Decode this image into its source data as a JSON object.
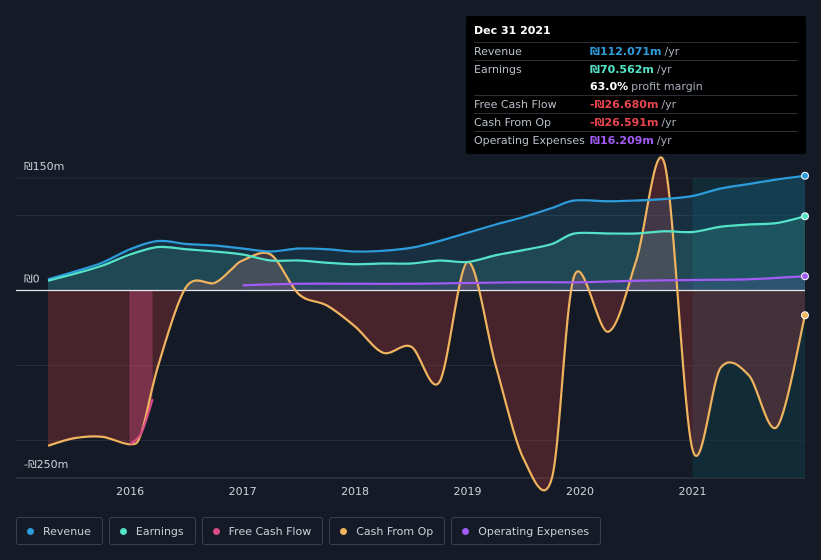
{
  "tooltip": {
    "date": "Dec 31 2021",
    "rows": [
      {
        "label": "Revenue",
        "value": "₪112.071m",
        "unit": "/yr",
        "color": "#2d9cdb"
      },
      {
        "label": "Earnings",
        "value": "₪70.562m",
        "unit": "/yr",
        "color": "#55e3c8"
      },
      {
        "label": "",
        "value": "63.0%",
        "unit": "profit margin",
        "color": "#ffffff"
      },
      {
        "label": "Free Cash Flow",
        "value": "-₪26.680m",
        "unit": "/yr",
        "color": "#e8464f"
      },
      {
        "label": "Cash From Op",
        "value": "-₪26.591m",
        "unit": "/yr",
        "color": "#e8464f"
      },
      {
        "label": "Operating Expenses",
        "value": "₪16.209m",
        "unit": "/yr",
        "color": "#a35bf5"
      }
    ]
  },
  "legend": [
    {
      "label": "Revenue",
      "color": "#2d9cdb"
    },
    {
      "label": "Earnings",
      "color": "#55e3c8"
    },
    {
      "label": "Free Cash Flow",
      "color": "#d94c86"
    },
    {
      "label": "Cash From Op",
      "color": "#f0b35e"
    },
    {
      "label": "Operating Expenses",
      "color": "#a35bf5"
    }
  ],
  "chart_data": {
    "type": "line",
    "title": "",
    "xlabel": "",
    "ylabel": "",
    "ylim": [
      -250,
      150
    ],
    "y_tick_labels": [
      "₪150m",
      "₪0",
      "-₪250m"
    ],
    "x_tick_labels": [
      "2016",
      "2017",
      "2018",
      "2019",
      "2020",
      "2021"
    ],
    "xlim": [
      2015.27,
      2022.0
    ],
    "forecast_region_start": 2021.0,
    "series": [
      {
        "name": "Revenue",
        "color": "#2d9cdb",
        "points": [
          [
            2015.27,
            15
          ],
          [
            2015.5,
            25
          ],
          [
            2015.75,
            37
          ],
          [
            2016.0,
            55
          ],
          [
            2016.25,
            66
          ],
          [
            2016.5,
            62
          ],
          [
            2016.75,
            60
          ],
          [
            2017.0,
            56
          ],
          [
            2017.25,
            52
          ],
          [
            2017.5,
            56
          ],
          [
            2017.75,
            55
          ],
          [
            2018.0,
            52
          ],
          [
            2018.25,
            53
          ],
          [
            2018.5,
            57
          ],
          [
            2018.75,
            66
          ],
          [
            2019.0,
            77
          ],
          [
            2019.25,
            88
          ],
          [
            2019.5,
            98
          ],
          [
            2019.75,
            110
          ],
          [
            2019.95,
            120
          ],
          [
            2020.25,
            119
          ],
          [
            2020.5,
            120
          ],
          [
            2020.75,
            122
          ],
          [
            2021.0,
            126
          ],
          [
            2021.25,
            136
          ],
          [
            2021.5,
            142
          ],
          [
            2021.75,
            148
          ],
          [
            2022.0,
            153
          ]
        ]
      },
      {
        "name": "Earnings",
        "color": "#55e3c8",
        "points": [
          [
            2015.27,
            13
          ],
          [
            2015.5,
            22
          ],
          [
            2015.75,
            33
          ],
          [
            2016.0,
            48
          ],
          [
            2016.25,
            58
          ],
          [
            2016.5,
            55
          ],
          [
            2016.75,
            52
          ],
          [
            2017.0,
            48
          ],
          [
            2017.25,
            40
          ],
          [
            2017.5,
            40
          ],
          [
            2017.75,
            37
          ],
          [
            2018.0,
            35
          ],
          [
            2018.25,
            36
          ],
          [
            2018.5,
            36
          ],
          [
            2018.75,
            40
          ],
          [
            2019.0,
            38
          ],
          [
            2019.25,
            47
          ],
          [
            2019.5,
            54
          ],
          [
            2019.75,
            62
          ],
          [
            2019.95,
            76
          ],
          [
            2020.25,
            76
          ],
          [
            2020.5,
            76
          ],
          [
            2020.75,
            79
          ],
          [
            2021.0,
            78
          ],
          [
            2021.25,
            85
          ],
          [
            2021.5,
            88
          ],
          [
            2021.75,
            90
          ],
          [
            2022.0,
            99
          ]
        ]
      },
      {
        "name": "Free Cash Flow",
        "color": "#d94c86",
        "points": [
          [
            2016.0,
            -205
          ],
          [
            2016.1,
            -190
          ],
          [
            2016.2,
            -145
          ]
        ]
      },
      {
        "name": "Cash From Op",
        "color": "#f0b35e",
        "points": [
          [
            2015.27,
            -207
          ],
          [
            2015.5,
            -197
          ],
          [
            2015.75,
            -195
          ],
          [
            2016.0,
            -205
          ],
          [
            2016.1,
            -190
          ],
          [
            2016.25,
            -100
          ],
          [
            2016.5,
            5
          ],
          [
            2016.75,
            10
          ],
          [
            2016.9,
            28
          ],
          [
            2017.0,
            40
          ],
          [
            2017.25,
            48
          ],
          [
            2017.5,
            -5
          ],
          [
            2017.75,
            -20
          ],
          [
            2018.0,
            -48
          ],
          [
            2018.25,
            -83
          ],
          [
            2018.5,
            -75
          ],
          [
            2018.75,
            -122
          ],
          [
            2019.0,
            38
          ],
          [
            2019.25,
            -100
          ],
          [
            2019.5,
            -225
          ],
          [
            2019.75,
            -250
          ],
          [
            2019.95,
            20
          ],
          [
            2020.25,
            -55
          ],
          [
            2020.5,
            40
          ],
          [
            2020.75,
            170
          ],
          [
            2021.0,
            -212
          ],
          [
            2021.25,
            -103
          ],
          [
            2021.5,
            -113
          ],
          [
            2021.75,
            -182
          ],
          [
            2022.0,
            -33
          ]
        ]
      },
      {
        "name": "Operating Expenses",
        "color": "#a35bf5",
        "points": [
          [
            2017.0,
            7
          ],
          [
            2017.5,
            9
          ],
          [
            2018.0,
            9
          ],
          [
            2018.5,
            9
          ],
          [
            2019.0,
            10
          ],
          [
            2019.5,
            11
          ],
          [
            2020.0,
            11
          ],
          [
            2020.5,
            13
          ],
          [
            2021.0,
            14
          ],
          [
            2021.5,
            15
          ],
          [
            2022.0,
            19
          ]
        ]
      }
    ]
  }
}
